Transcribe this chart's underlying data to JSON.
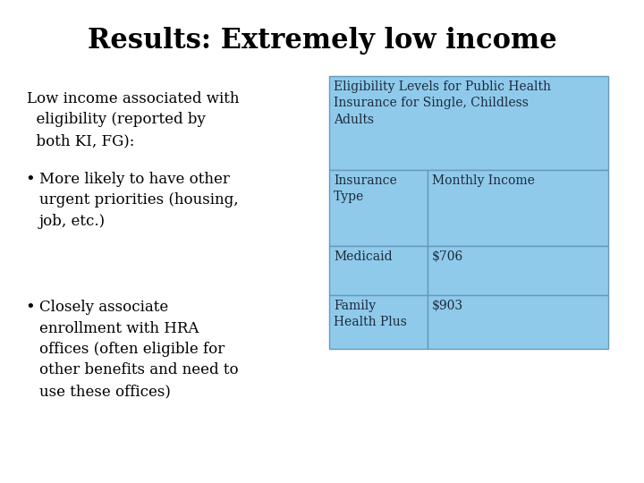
{
  "title": "Results: Extremely low income",
  "title_fontsize": 22,
  "title_font": "DejaVu Serif",
  "bg_color": "#ffffff",
  "left_text_intro": "Low income associated with\n  eligibility (reported by\n  both KI, FG):",
  "bullet_points": [
    "More likely to have other\nurgent priorities (housing,\njob, etc.)",
    "Closely associate\nenrollment with HRA\noffices (often eligible for\nother benefits and need to\nuse these offices)"
  ],
  "table_bg": "#90CAEB",
  "table_border": "#6699BB",
  "table_header_title": "Eligibility Levels for Public Health\nInsurance for Single, Childless\nAdults",
  "table_col1_header": "Insurance\nType",
  "table_col2_header": "Monthly Income",
  "table_rows": [
    [
      "Medicaid",
      "$706"
    ],
    [
      "Family\nHealth Plus",
      "$903"
    ]
  ],
  "text_fontsize": 12,
  "table_fontsize": 10,
  "text_font": "DejaVu Serif",
  "table_text_color": "#1a2a3a"
}
